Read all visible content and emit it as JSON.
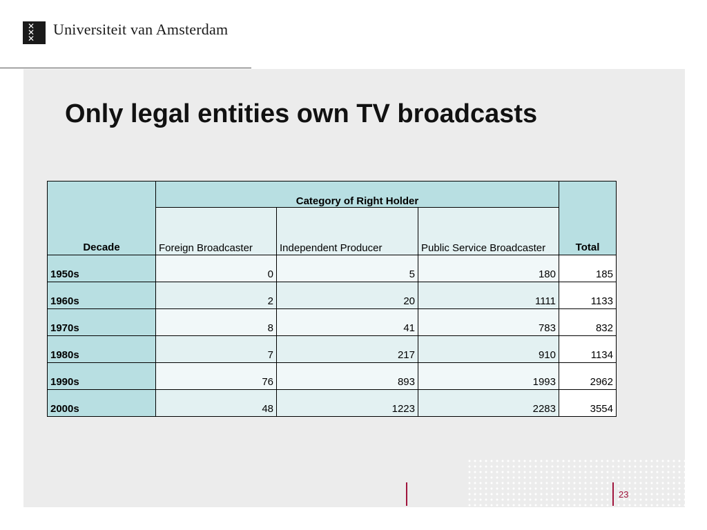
{
  "header": {
    "logo_icon": "uva-xxx-emblem-icon",
    "university_name": "Universiteit van Amsterdam"
  },
  "slide": {
    "title": "Only legal entities own TV broadcasts",
    "page_number": "23"
  },
  "table": {
    "decade_header": "Decade",
    "category_header": "Category of Right Holder",
    "sub_headers": [
      "Foreign Broadcaster",
      "Independent Producer",
      "Public Service Broadcaster"
    ],
    "total_header": "Total",
    "rows": [
      {
        "decade": "1950s",
        "foreign": "0",
        "independent": "5",
        "public": "180",
        "total": "185"
      },
      {
        "decade": "1960s",
        "foreign": "2",
        "independent": "20",
        "public": "1111",
        "total": "1133"
      },
      {
        "decade": "1970s",
        "foreign": "8",
        "independent": "41",
        "public": "783",
        "total": "832"
      },
      {
        "decade": "1980s",
        "foreign": "7",
        "independent": "217",
        "public": "910",
        "total": "1134"
      },
      {
        "decade": "1990s",
        "foreign": "76",
        "independent": "893",
        "public": "1993",
        "total": "2962"
      },
      {
        "decade": "2000s",
        "foreign": "48",
        "independent": "1223",
        "public": "2283",
        "total": "3554"
      }
    ]
  },
  "colors": {
    "header_fill": "#b8dfe2",
    "accent": "#a0143c",
    "slide_background": "#ececec"
  }
}
